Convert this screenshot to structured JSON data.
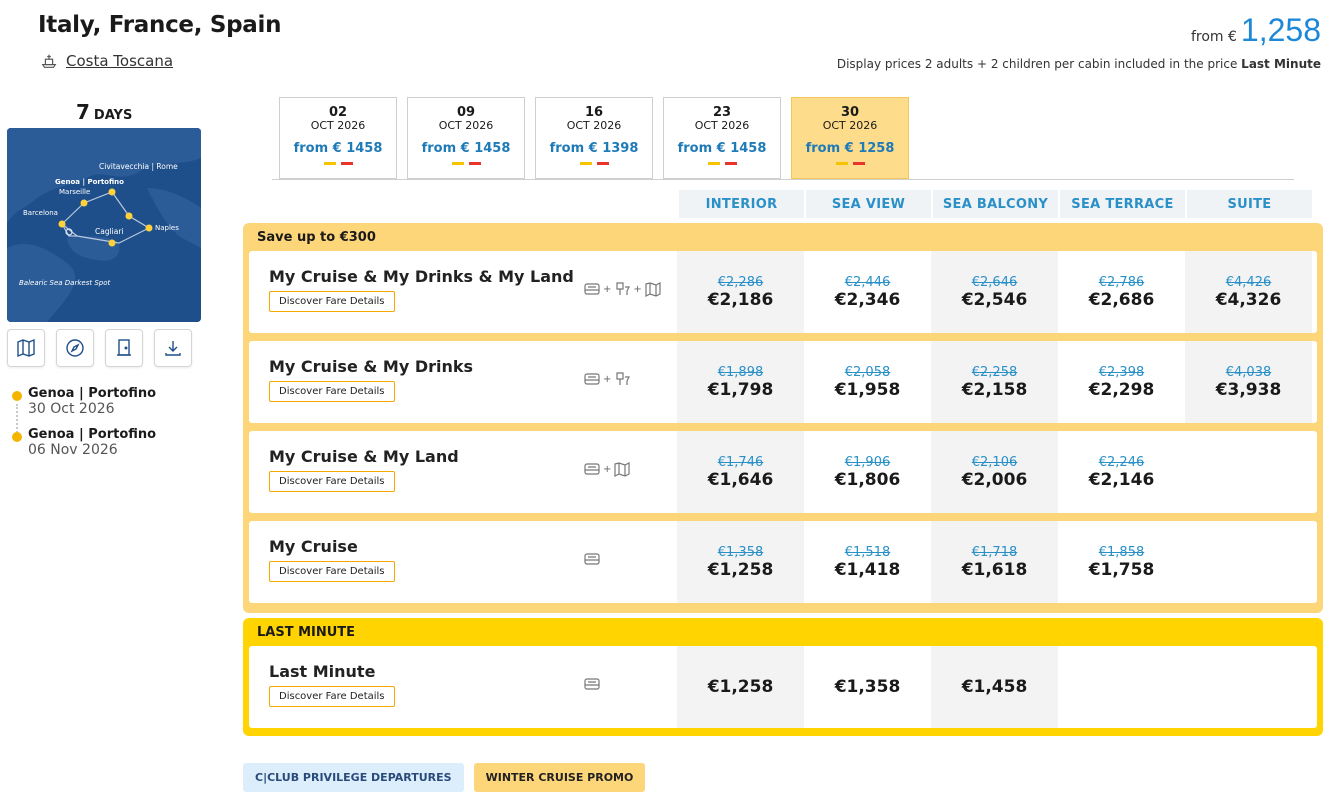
{
  "header": {
    "title": "Italy, France, Spain",
    "ship_name": "Costa Toscana",
    "from_label": "from €",
    "from_value": "1,258",
    "display_note": "Display prices 2 adults + 2 children per cabin included in the price",
    "display_note_bold": "Last Minute"
  },
  "left": {
    "days_num": "7",
    "days_label": "DAYS",
    "map_labels": {
      "civitavecchia": "Civitavecchia | Rome",
      "genoa": "Genoa | Portofino",
      "marseille": "Marseille",
      "barcelona": "Barcelona",
      "cagliari": "Cagliari",
      "naples": "Naples",
      "balearic": "Balearic Sea Darkest Spot"
    },
    "tools": [
      "map-icon",
      "compass-icon",
      "door-icon",
      "download-icon"
    ],
    "itinerary": [
      {
        "port": "Genoa | Portofino",
        "date": "30 Oct 2026"
      },
      {
        "port": "Genoa | Portofino",
        "date": "06 Nov 2026"
      }
    ]
  },
  "dates": [
    {
      "day": "02",
      "month": "OCT 2026",
      "price": "from € 1458",
      "active": false
    },
    {
      "day": "09",
      "month": "OCT 2026",
      "price": "from € 1458",
      "active": false
    },
    {
      "day": "16",
      "month": "OCT 2026",
      "price": "from € 1398",
      "active": false
    },
    {
      "day": "23",
      "month": "OCT 2026",
      "price": "from € 1458",
      "active": false
    },
    {
      "day": "30",
      "month": "OCT 2026",
      "price": "from € 1258",
      "active": true
    }
  ],
  "cabins": [
    "INTERIOR",
    "SEA VIEW",
    "SEA BALCONY",
    "SEA TERRACE",
    "SUITE"
  ],
  "groups": {
    "save": {
      "title": "Save up to €300",
      "rows": [
        {
          "name": "My Cruise & My Drinks & My Land",
          "button": "Discover Fare Details",
          "icons": [
            "bed-icon",
            "drinks-icon",
            "land-icon"
          ],
          "prices": [
            {
              "old": "€2,286",
              "new": "€2,186"
            },
            {
              "old": "€2,446",
              "new": "€2,346"
            },
            {
              "old": "€2,646",
              "new": "€2,546"
            },
            {
              "old": "€2,786",
              "new": "€2,686"
            },
            {
              "old": "€4,426",
              "new": "€4,326"
            }
          ]
        },
        {
          "name": "My Cruise & My Drinks",
          "button": "Discover Fare Details",
          "icons": [
            "bed-icon",
            "drinks-icon"
          ],
          "prices": [
            {
              "old": "€1,898",
              "new": "€1,798"
            },
            {
              "old": "€2,058",
              "new": "€1,958"
            },
            {
              "old": "€2,258",
              "new": "€2,158"
            },
            {
              "old": "€2,398",
              "new": "€2,298"
            },
            {
              "old": "€4,038",
              "new": "€3,938"
            }
          ]
        },
        {
          "name": "My Cruise & My Land",
          "button": "Discover Fare Details",
          "icons": [
            "bed-icon",
            "land-icon"
          ],
          "prices": [
            {
              "old": "€1,746",
              "new": "€1,646"
            },
            {
              "old": "€1,906",
              "new": "€1,806"
            },
            {
              "old": "€2,106",
              "new": "€2,006"
            },
            {
              "old": "€2,246",
              "new": "€2,146"
            },
            {
              "old": "",
              "new": ""
            }
          ]
        },
        {
          "name": "My Cruise",
          "button": "Discover Fare Details",
          "icons": [
            "bed-icon"
          ],
          "prices": [
            {
              "old": "€1,358",
              "new": "€1,258"
            },
            {
              "old": "€1,518",
              "new": "€1,418"
            },
            {
              "old": "€1,718",
              "new": "€1,618"
            },
            {
              "old": "€1,858",
              "new": "€1,758"
            },
            {
              "old": "",
              "new": ""
            }
          ]
        }
      ]
    },
    "last": {
      "title": "LAST MINUTE",
      "rows": [
        {
          "name": "Last Minute",
          "button": "Discover Fare Details",
          "icons": [
            "bed-icon"
          ],
          "prices": [
            {
              "old": "",
              "new": "€1,258"
            },
            {
              "old": "",
              "new": "€1,358"
            },
            {
              "old": "",
              "new": "€1,458"
            },
            {
              "old": "",
              "new": ""
            },
            {
              "old": "",
              "new": ""
            }
          ]
        }
      ]
    }
  },
  "badges": {
    "club": "C|CLUB PRIVILEGE DEPARTURES",
    "promo": "WINTER CRUISE PROMO"
  },
  "colors": {
    "accent_blue": "#1e88d8",
    "save_group": "#fdd67a",
    "last_group": "#ffd400",
    "active_date": "#fddc8c"
  }
}
